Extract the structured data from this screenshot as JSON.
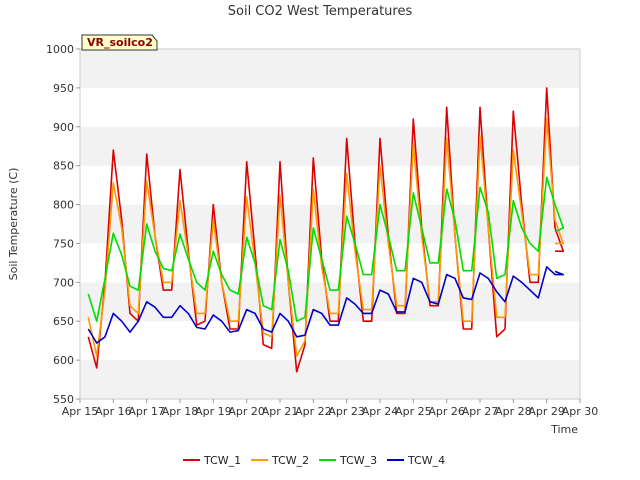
{
  "chart_data": {
    "type": "line",
    "title": "Soil CO2 West Temperatures",
    "xlabel": "Time",
    "ylabel": "Soil Temperature (C)",
    "badge": "VR_soilco2",
    "ylim": [
      550,
      1000
    ],
    "yticks": [
      550,
      600,
      650,
      700,
      750,
      800,
      850,
      900,
      950,
      1000
    ],
    "xlim": [
      "Apr 15",
      "Apr 30"
    ],
    "xticks": [
      "Apr 15",
      "Apr 16",
      "Apr 17",
      "Apr 18",
      "Apr 19",
      "Apr 20",
      "Apr 21",
      "Apr 22",
      "Apr 23",
      "Apr 24",
      "Apr 25",
      "Apr 26",
      "Apr 27",
      "Apr 28",
      "Apr 29",
      "Apr 30"
    ],
    "grid": "horizontal bands",
    "legend_position": "bottom",
    "x": [
      "Apr 15 06:00",
      "Apr 15 12:00",
      "Apr 15 18:00",
      "Apr 16 00:00",
      "Apr 16 06:00",
      "Apr 16 12:00",
      "Apr 16 18:00",
      "Apr 17 00:00",
      "Apr 17 06:00",
      "Apr 17 12:00",
      "Apr 17 18:00",
      "Apr 18 00:00",
      "Apr 18 06:00",
      "Apr 18 12:00",
      "Apr 18 18:00",
      "Apr 19 00:00",
      "Apr 19 06:00",
      "Apr 19 12:00",
      "Apr 19 18:00",
      "Apr 20 00:00",
      "Apr 20 06:00",
      "Apr 20 12:00",
      "Apr 20 18:00",
      "Apr 21 00:00",
      "Apr 21 06:00",
      "Apr 21 12:00",
      "Apr 21 18:00",
      "Apr 22 00:00",
      "Apr 22 06:00",
      "Apr 22 12:00",
      "Apr 22 18:00",
      "Apr 23 00:00",
      "Apr 23 06:00",
      "Apr 23 12:00",
      "Apr 23 18:00",
      "Apr 24 00:00",
      "Apr 24 06:00",
      "Apr 24 12:00",
      "Apr 24 18:00",
      "Apr 25 00:00",
      "Apr 25 06:00",
      "Apr 25 12:00",
      "Apr 25 18:00",
      "Apr 26 00:00",
      "Apr 26 06:00",
      "Apr 26 12:00",
      "Apr 26 18:00",
      "Apr 27 00:00",
      "Apr 27 06:00",
      "Apr 27 12:00",
      "Apr 27 18:00",
      "Apr 28 00:00",
      "Apr 28 06:00",
      "Apr 28 12:00",
      "Apr 28 18:00",
      "Apr 29 00:00",
      "Apr 29 06:00",
      "Apr 29 12:00",
      "Apr 29 06:00"
    ],
    "series": [
      {
        "name": "TCW_1",
        "color": "#dd0000",
        "values": [
          630,
          590,
          700,
          870,
          780,
          660,
          650,
          865,
          760,
          690,
          690,
          845,
          740,
          645,
          650,
          800,
          700,
          640,
          640,
          855,
          740,
          620,
          615,
          855,
          700,
          585,
          620,
          860,
          730,
          650,
          650,
          885,
          750,
          650,
          650,
          885,
          760,
          660,
          660,
          910,
          770,
          670,
          670,
          925,
          760,
          640,
          640,
          925,
          770,
          630,
          640,
          920,
          800,
          700,
          700,
          950,
          770,
          740,
          740
        ]
      },
      {
        "name": "TCW_2",
        "color": "#ff9900",
        "values": [
          655,
          605,
          690,
          828,
          770,
          670,
          660,
          830,
          760,
          700,
          700,
          805,
          735,
          660,
          660,
          780,
          700,
          650,
          650,
          810,
          725,
          635,
          630,
          812,
          700,
          605,
          625,
          820,
          720,
          660,
          660,
          840,
          740,
          665,
          665,
          850,
          750,
          670,
          670,
          878,
          760,
          675,
          675,
          885,
          760,
          650,
          650,
          888,
          770,
          655,
          655,
          870,
          790,
          710,
          710,
          910,
          780,
          750,
          750
        ]
      },
      {
        "name": "TCW_3",
        "color": "#00dd00",
        "values": [
          685,
          650,
          705,
          763,
          735,
          695,
          690,
          775,
          740,
          718,
          715,
          762,
          730,
          700,
          690,
          740,
          710,
          690,
          685,
          758,
          725,
          670,
          665,
          755,
          715,
          650,
          655,
          770,
          730,
          690,
          690,
          785,
          750,
          710,
          710,
          800,
          760,
          715,
          715,
          815,
          770,
          725,
          725,
          820,
          780,
          715,
          715,
          822,
          790,
          705,
          710,
          805,
          770,
          750,
          740,
          835,
          800,
          770,
          765
        ]
      },
      {
        "name": "TCW_4",
        "color": "#0000cc",
        "values": [
          640,
          622,
          630,
          660,
          650,
          636,
          650,
          675,
          668,
          655,
          655,
          670,
          660,
          642,
          640,
          658,
          650,
          636,
          638,
          665,
          660,
          640,
          636,
          660,
          650,
          630,
          632,
          665,
          660,
          645,
          645,
          680,
          672,
          660,
          660,
          690,
          685,
          662,
          662,
          705,
          700,
          675,
          672,
          710,
          705,
          680,
          678,
          712,
          705,
          688,
          675,
          708,
          700,
          690,
          680,
          720,
          710,
          710,
          714
        ]
      }
    ]
  }
}
